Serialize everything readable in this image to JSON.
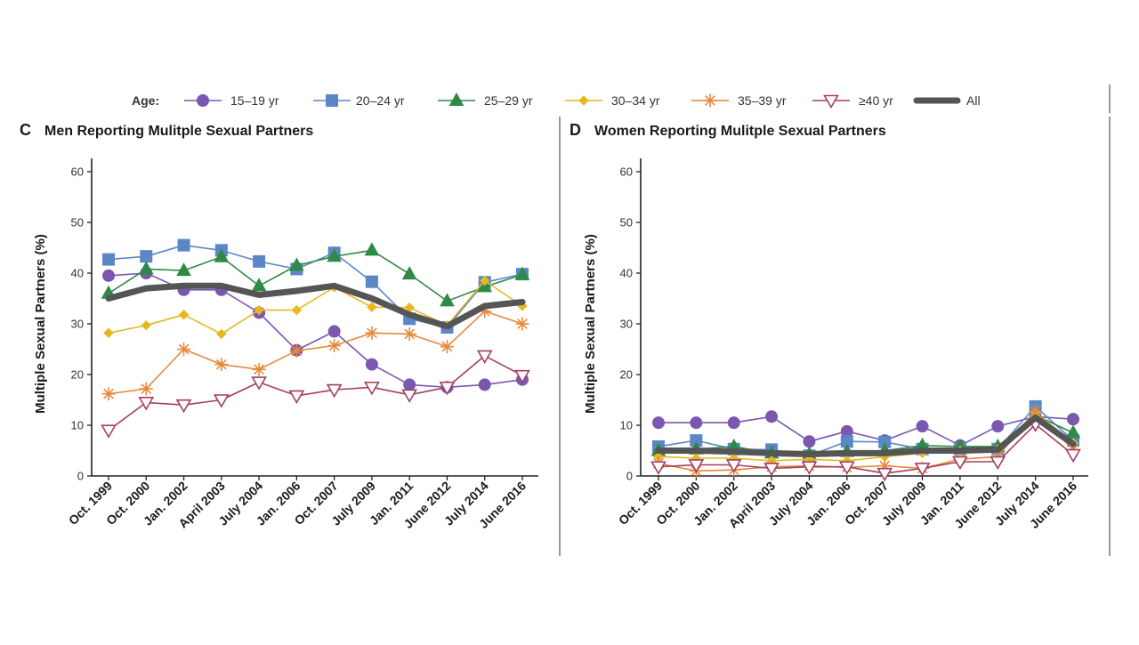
{
  "legend": {
    "label": "Age:",
    "items": [
      {
        "key": "a15",
        "label": "15–19 yr",
        "color": "#7b57b0",
        "marker": "circle"
      },
      {
        "key": "a20",
        "label": "20–24 yr",
        "color": "#5b87c6",
        "marker": "square"
      },
      {
        "key": "a25",
        "label": "25–29 yr",
        "color": "#2f8a48",
        "marker": "triangle-up"
      },
      {
        "key": "a30",
        "label": "30–34 yr",
        "color": "#e6b820",
        "marker": "diamond"
      },
      {
        "key": "a35",
        "label": "35–39 yr",
        "color": "#e6893b",
        "marker": "asterisk"
      },
      {
        "key": "a40",
        "label": "≥40 yr",
        "color": "#a33f62",
        "marker": "triangle-down-open"
      },
      {
        "key": "all",
        "label": "All",
        "color": "#555555",
        "marker": "thick-line"
      }
    ]
  },
  "chart_data": [
    {
      "type": "line",
      "panel": "C",
      "title": "Men Reporting Mulitple Sexual Partners",
      "ylabel": "Multiple Sexual Partners (%)",
      "ylim": [
        0,
        60
      ],
      "yticks": [
        0,
        10,
        20,
        30,
        40,
        50,
        60
      ],
      "categories": [
        "Oct. 1999",
        "Oct. 2000",
        "Jan. 2002",
        "April 2003",
        "July 2004",
        "Jan. 2006",
        "Oct. 2007",
        "July 2009",
        "Jan. 2011",
        "June 2012",
        "July 2014",
        "June 2016"
      ],
      "series": [
        {
          "key": "a15",
          "name": "15–19 yr",
          "values": [
            39.5,
            40,
            36.7,
            36.7,
            32.2,
            24.8,
            28.5,
            22,
            18,
            17.5,
            18,
            19
          ]
        },
        {
          "key": "a20",
          "name": "20–24 yr",
          "values": [
            42.7,
            43.3,
            45.5,
            44.5,
            42.3,
            40.8,
            44,
            38.3,
            31,
            29.3,
            38.2,
            39.8
          ]
        },
        {
          "key": "a25",
          "name": "25–29 yr",
          "values": [
            36,
            40.8,
            40.5,
            43.2,
            37.5,
            41.5,
            43.3,
            44.5,
            39.8,
            34.5,
            37.3,
            39.7
          ]
        },
        {
          "key": "a30",
          "name": "30–34 yr",
          "values": [
            28.2,
            29.7,
            31.8,
            28,
            32.7,
            32.7,
            37.2,
            33.3,
            33.2,
            29.7,
            38.5,
            33.5
          ]
        },
        {
          "key": "a35",
          "name": "35–39 yr",
          "values": [
            16.2,
            17.2,
            25,
            22,
            21,
            24.7,
            25.7,
            28.2,
            28,
            25.5,
            32.5,
            30
          ]
        },
        {
          "key": "a40",
          "name": "≥40 yr",
          "values": [
            9,
            14.5,
            14,
            15,
            18.5,
            15.8,
            17,
            17.5,
            16,
            17.5,
            23.7,
            19.8
          ]
        },
        {
          "key": "all",
          "name": "All",
          "values": [
            35,
            37,
            37.5,
            37.5,
            35.7,
            36.5,
            37.5,
            35,
            31.8,
            29.5,
            33.5,
            34.3
          ]
        }
      ]
    },
    {
      "type": "line",
      "panel": "D",
      "title": "Women Reporting Mulitple Sexual Partners",
      "ylabel": "Multiple Sexual Partners (%)",
      "ylim": [
        0,
        60
      ],
      "yticks": [
        0,
        10,
        20,
        30,
        40,
        50,
        60
      ],
      "categories": [
        "Oct. 1999",
        "Oct. 2000",
        "Jan. 2002",
        "April 2003",
        "July 2004",
        "Jan. 2006",
        "Oct. 2007",
        "July 2009",
        "Jan. 2011",
        "June 2012",
        "July 2014",
        "June 2016"
      ],
      "series": [
        {
          "key": "a15",
          "name": "15–19 yr",
          "values": [
            10.5,
            10.5,
            10.5,
            11.7,
            6.8,
            8.8,
            7,
            9.8,
            6,
            9.8,
            11.7,
            11.2
          ]
        },
        {
          "key": "a20",
          "name": "20–24 yr",
          "values": [
            5.8,
            7,
            5.3,
            5.2,
            4,
            6.8,
            6.7,
            5.3,
            5.3,
            5.3,
            13.7,
            7
          ]
        },
        {
          "key": "a25",
          "name": "25–29 yr",
          "values": [
            5,
            5.3,
            5.8,
            4.5,
            4.3,
            4.8,
            5,
            6,
            5.8,
            5.8,
            12,
            8.5
          ]
        },
        {
          "key": "a30",
          "name": "30–34 yr",
          "values": [
            3.8,
            3.5,
            3.5,
            3,
            3.3,
            3,
            3.8,
            4.5,
            5,
            5.3,
            12.5,
            6.5
          ]
        },
        {
          "key": "a35",
          "name": "35–39 yr",
          "values": [
            2.5,
            1,
            1.2,
            1.8,
            2,
            1.7,
            2,
            1.5,
            3.3,
            3.8,
            12.8,
            5.2
          ]
        },
        {
          "key": "a40",
          "name": "≥40 yr",
          "values": [
            1.8,
            2.2,
            2.2,
            1.5,
            1.8,
            1.8,
            0.5,
            1.5,
            2.8,
            2.8,
            10.2,
            4.2
          ]
        },
        {
          "key": "all",
          "name": "All",
          "values": [
            5,
            5,
            4.8,
            4.5,
            4.3,
            4.5,
            4.5,
            5,
            5,
            5.2,
            11.5,
            6.3
          ]
        }
      ]
    }
  ]
}
